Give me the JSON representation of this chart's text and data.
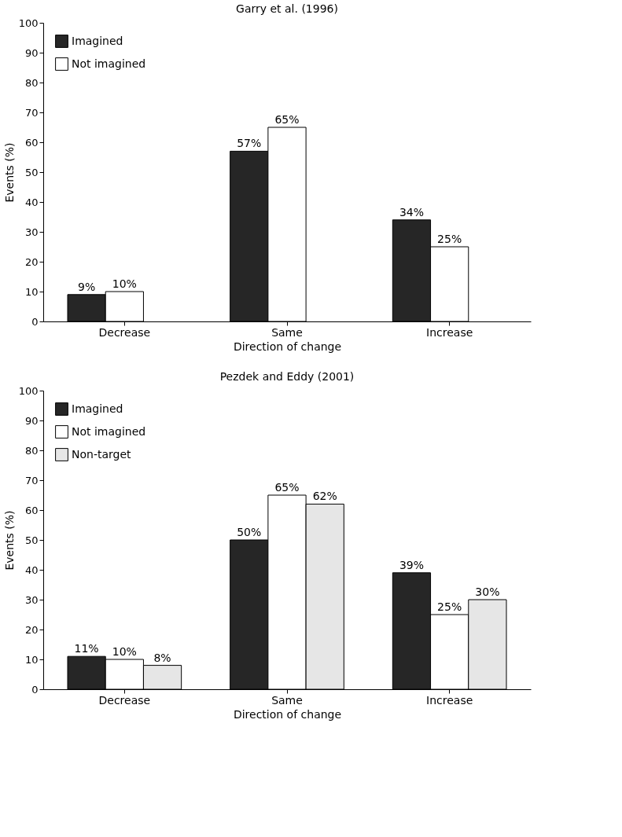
{
  "chart_data": [
    {
      "type": "bar",
      "title": "Garry et al. (1996)",
      "xlabel": "Direction of change",
      "ylabel": "Events (%)",
      "categories": [
        "Decrease",
        "Same",
        "Increase"
      ],
      "series": [
        {
          "name": "Imagined",
          "color": "#262626",
          "values": [
            9,
            57,
            34
          ],
          "value_labels": [
            "9%",
            "57%",
            "34%"
          ]
        },
        {
          "name": "Not imagined",
          "color": "#ffffff",
          "values": [
            10,
            65,
            25
          ],
          "value_labels": [
            "10%",
            "65%",
            "25%"
          ]
        }
      ],
      "ylim": [
        0,
        100
      ],
      "yticks": [
        0,
        10,
        20,
        30,
        40,
        50,
        60,
        70,
        80,
        90,
        100
      ],
      "legend": "top left",
      "grid": false
    },
    {
      "type": "bar",
      "title": "Pezdek and Eddy (2001)",
      "xlabel": "Direction of change",
      "ylabel": "Events (%)",
      "categories": [
        "Decrease",
        "Same",
        "Increase"
      ],
      "series": [
        {
          "name": "Imagined",
          "color": "#262626",
          "values": [
            11,
            50,
            39
          ],
          "value_labels": [
            "11%",
            "50%",
            "39%"
          ]
        },
        {
          "name": "Not imagined",
          "color": "#ffffff",
          "values": [
            10,
            65,
            25
          ],
          "value_labels": [
            "10%",
            "65%",
            "25%"
          ]
        },
        {
          "name": "Non-target",
          "color": "#e6e6e6",
          "values": [
            8,
            62,
            30
          ],
          "value_labels": [
            "8%",
            "62%",
            "30%"
          ]
        }
      ],
      "ylim": [
        0,
        100
      ],
      "yticks": [
        0,
        10,
        20,
        30,
        40,
        50,
        60,
        70,
        80,
        90,
        100
      ],
      "legend": "top left",
      "grid": false
    }
  ]
}
